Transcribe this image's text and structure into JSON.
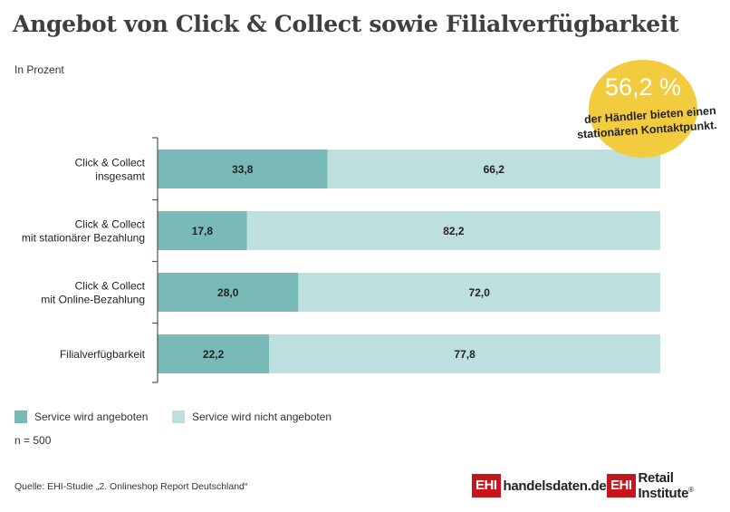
{
  "title": "Angebot von Click & Collect sowie Filialverfügbarkeit",
  "subtitle": "In Prozent",
  "badge": {
    "value": "56,2 %",
    "text_line1": "der Händler bieten einen",
    "text_line2": "stationären Kontaktpunkt."
  },
  "colors": {
    "offered": "#78bab7",
    "not_offered": "#bde0de",
    "badge": "#f2cc3e",
    "brand_red": "#c5161d"
  },
  "chart_data": {
    "type": "bar",
    "orientation": "horizontal",
    "stacked": true,
    "categories": [
      [
        "Click & Collect",
        "insgesamt"
      ],
      [
        "Click & Collect",
        "mit stationärer Bezahlung"
      ],
      [
        "Click & Collect",
        "mit Online-Bezahlung"
      ],
      [
        "Filialverfügbarkeit"
      ]
    ],
    "series": [
      {
        "name": "Service wird angeboten",
        "values": [
          33.8,
          17.8,
          28.0,
          22.2
        ],
        "labels": [
          "33,8",
          "17,8",
          "28,0",
          "22,2"
        ]
      },
      {
        "name": "Service wird nicht angeboten",
        "values": [
          66.2,
          82.2,
          72.0,
          77.8
        ],
        "labels": [
          "66,2",
          "82,2",
          "72,0",
          "77,8"
        ]
      }
    ],
    "xlim": [
      0,
      100
    ],
    "legend": "bottom-left"
  },
  "legend": {
    "offered": "Service wird angeboten",
    "not_offered": "Service wird nicht angeboten"
  },
  "sample_size": "n = 500",
  "source": "Quelle: EHI-Studie „2. Onlineshop Report Deutschland“",
  "logos": {
    "handelsdaten_box": "EHI",
    "handelsdaten_text": "handelsdaten.de",
    "retail_box": "EHI",
    "retail_text": "Retail Institute",
    "retail_reg": "®"
  }
}
